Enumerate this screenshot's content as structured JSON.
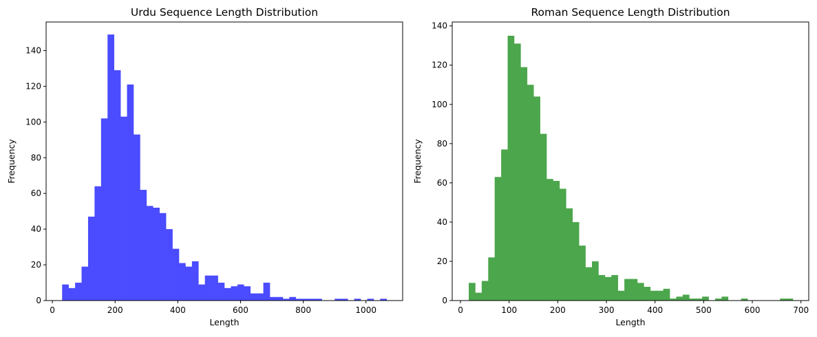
{
  "chart_data": [
    {
      "type": "bar",
      "title": "Urdu Sequence Length Distribution",
      "xlabel": "Length",
      "ylabel": "Frequency",
      "color": "#4b4bff",
      "xlim": [
        -20,
        1117
      ],
      "ylim": [
        0,
        156
      ],
      "xticks": [
        0,
        200,
        400,
        600,
        800,
        1000
      ],
      "yticks": [
        0,
        20,
        40,
        60,
        80,
        100,
        120,
        140
      ],
      "grid": false,
      "bin_start": 31,
      "bin_width": 20.7,
      "values": [
        9,
        7,
        10,
        19,
        47,
        64,
        102,
        149,
        129,
        103,
        121,
        93,
        62,
        53,
        52,
        49,
        40,
        29,
        21,
        19,
        22,
        9,
        14,
        14,
        10,
        7,
        8,
        9,
        8,
        4,
        4,
        10,
        2,
        2,
        1,
        2,
        1,
        1,
        1,
        1,
        0,
        0,
        1,
        1,
        0,
        1,
        0,
        1,
        0,
        1
      ]
    },
    {
      "type": "bar",
      "title": "Roman Sequence Length Distribution",
      "xlabel": "Length",
      "ylabel": "Frequency",
      "color": "#4ca64c",
      "xlim": [
        -17,
        716
      ],
      "ylim": [
        0,
        142
      ],
      "xticks": [
        0,
        100,
        200,
        300,
        400,
        500,
        600,
        700
      ],
      "yticks": [
        0,
        20,
        40,
        60,
        80,
        100,
        120,
        140
      ],
      "grid": false,
      "bin_start": 17,
      "bin_width": 13.33,
      "values": [
        9,
        4,
        10,
        22,
        63,
        77,
        135,
        131,
        119,
        110,
        104,
        85,
        62,
        61,
        57,
        47,
        40,
        28,
        17,
        20,
        13,
        12,
        13,
        5,
        11,
        11,
        9,
        7,
        5,
        5,
        6,
        1,
        2,
        3,
        1,
        1,
        2,
        0,
        1,
        2,
        0,
        0,
        1,
        0,
        0,
        0,
        0,
        0,
        1,
        1
      ]
    }
  ]
}
